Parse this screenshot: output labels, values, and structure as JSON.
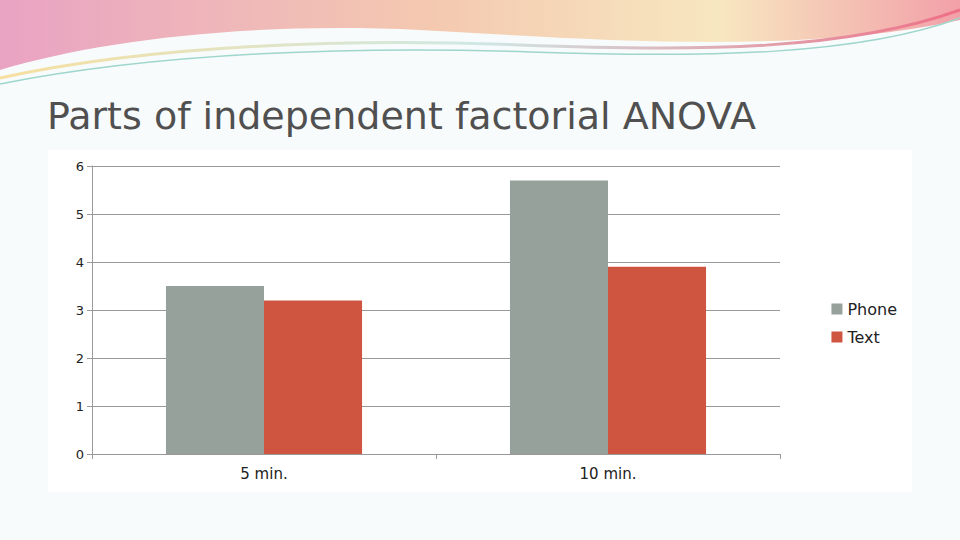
{
  "chart_data": {
    "type": "bar",
    "title": "Parts of independent factorial ANOVA",
    "categories": [
      "5 min.",
      "10 min."
    ],
    "series": [
      {
        "name": "Phone",
        "color": "#95a19a",
        "values": [
          3.5,
          5.7
        ]
      },
      {
        "name": "Text",
        "color": "#cf5540",
        "values": [
          3.2,
          3.9
        ]
      }
    ],
    "ylim": [
      0,
      6
    ],
    "yticks": [
      0,
      1,
      2,
      3,
      4,
      5,
      6
    ],
    "grid": true,
    "legend": "right"
  }
}
